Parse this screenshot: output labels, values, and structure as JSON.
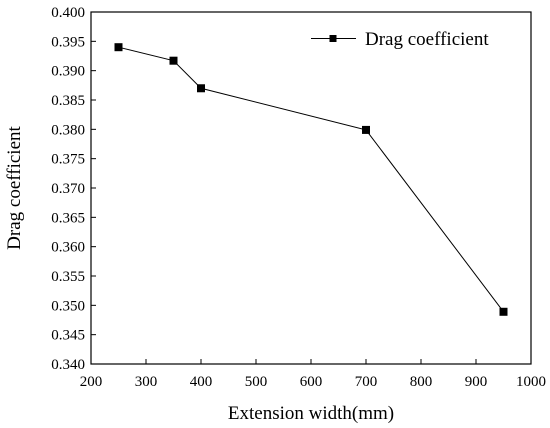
{
  "chart_data": {
    "type": "line",
    "title": "",
    "xlabel": "Extension width(mm)",
    "ylabel": "Drag coefficient",
    "xlim": [
      200,
      1000
    ],
    "ylim": [
      0.34,
      0.4
    ],
    "x_ticks": [
      200,
      300,
      400,
      500,
      600,
      700,
      800,
      900,
      1000
    ],
    "y_ticks": [
      0.34,
      0.345,
      0.35,
      0.355,
      0.36,
      0.365,
      0.37,
      0.375,
      0.38,
      0.385,
      0.39,
      0.395,
      0.4
    ],
    "y_tick_labels": [
      "0.340",
      "0.345",
      "0.350",
      "0.355",
      "0.360",
      "0.365",
      "0.370",
      "0.375",
      "0.380",
      "0.385",
      "0.390",
      "0.395",
      "0.400"
    ],
    "grid": false,
    "legend_position": "top-right",
    "series": [
      {
        "name": "Drag coefficient",
        "marker": "square",
        "color": "#000000",
        "points": [
          {
            "x": 250,
            "y": 0.394
          },
          {
            "x": 350,
            "y": 0.3917
          },
          {
            "x": 400,
            "y": 0.387
          },
          {
            "x": 700,
            "y": 0.3799
          },
          {
            "x": 950,
            "y": 0.3489
          }
        ]
      }
    ]
  }
}
